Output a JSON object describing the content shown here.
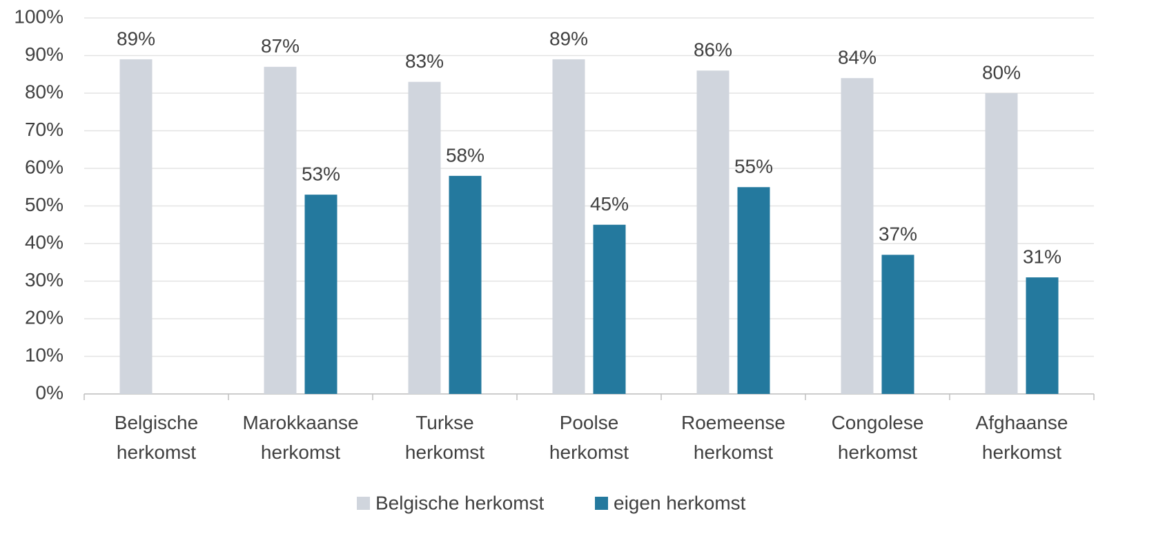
{
  "chart_data": {
    "type": "bar",
    "categories": [
      "Belgische herkomst",
      "Marokkaanse herkomst",
      "Turkse herkomst",
      "Poolse herkomst",
      "Roemeense herkomst",
      "Congolese herkomst",
      "Afghaanse herkomst"
    ],
    "series": [
      {
        "name": "Belgische herkomst",
        "color": "#d0d5dd",
        "values": [
          89,
          87,
          83,
          89,
          86,
          84,
          80
        ],
        "value_labels": [
          "89%",
          "87%",
          "83%",
          "89%",
          "86%",
          "84%",
          "80%"
        ]
      },
      {
        "name": "eigen herkomst",
        "color": "#24799e",
        "values": [
          null,
          53,
          58,
          45,
          55,
          37,
          31
        ],
        "value_labels": [
          null,
          "53%",
          "58%",
          "45%",
          "55%",
          "37%",
          "31%"
        ]
      }
    ],
    "ylim": [
      0,
      100
    ],
    "yticks": [
      {
        "value": 0,
        "label": "0%"
      },
      {
        "value": 10,
        "label": "10%"
      },
      {
        "value": 20,
        "label": "20%"
      },
      {
        "value": 30,
        "label": "30%"
      },
      {
        "value": 40,
        "label": "40%"
      },
      {
        "value": 50,
        "label": "50%"
      },
      {
        "value": 60,
        "label": "60%"
      },
      {
        "value": 70,
        "label": "70%"
      },
      {
        "value": 80,
        "label": "80%"
      },
      {
        "value": 90,
        "label": "90%"
      },
      {
        "value": 100,
        "label": "100%"
      }
    ],
    "grid": true,
    "legend": "bottom"
  }
}
